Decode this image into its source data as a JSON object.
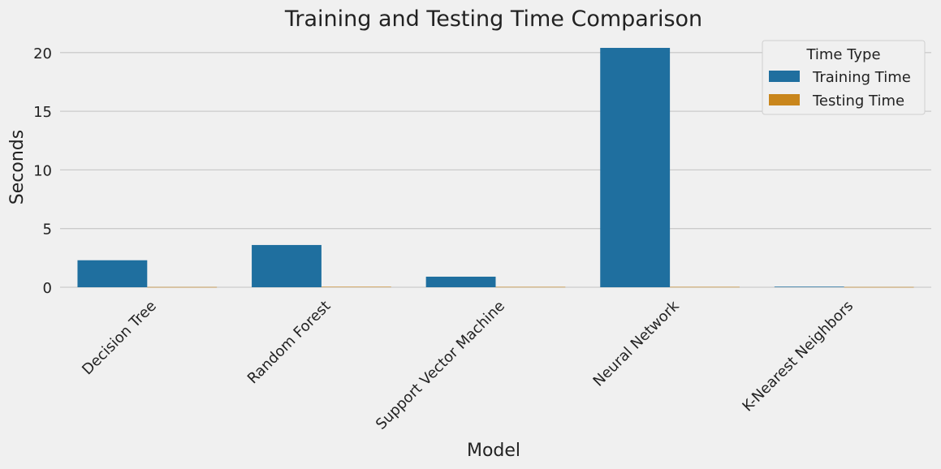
{
  "chart_data": {
    "type": "bar",
    "title": "Training and Testing Time Comparison",
    "xlabel": "Model",
    "ylabel": "Seconds",
    "categories": [
      "Decision Tree",
      "Random Forest",
      "Support Vector Machine",
      "Neural Network",
      "K-Nearest Neighbors"
    ],
    "series": [
      {
        "name": "Training Time",
        "color": "#1f6f9f",
        "values": [
          2.3,
          3.6,
          0.9,
          20.4,
          0.05
        ]
      },
      {
        "name": "Testing Time",
        "color": "#c9861c",
        "values": [
          0.02,
          0.04,
          0.03,
          0.03,
          0.02
        ]
      }
    ],
    "yticks": [
      0,
      5,
      10,
      15,
      20
    ],
    "ylim": [
      0,
      21.3
    ],
    "grid": "horizontal",
    "legend": {
      "title": "Time Type",
      "placement": "top-right"
    }
  }
}
